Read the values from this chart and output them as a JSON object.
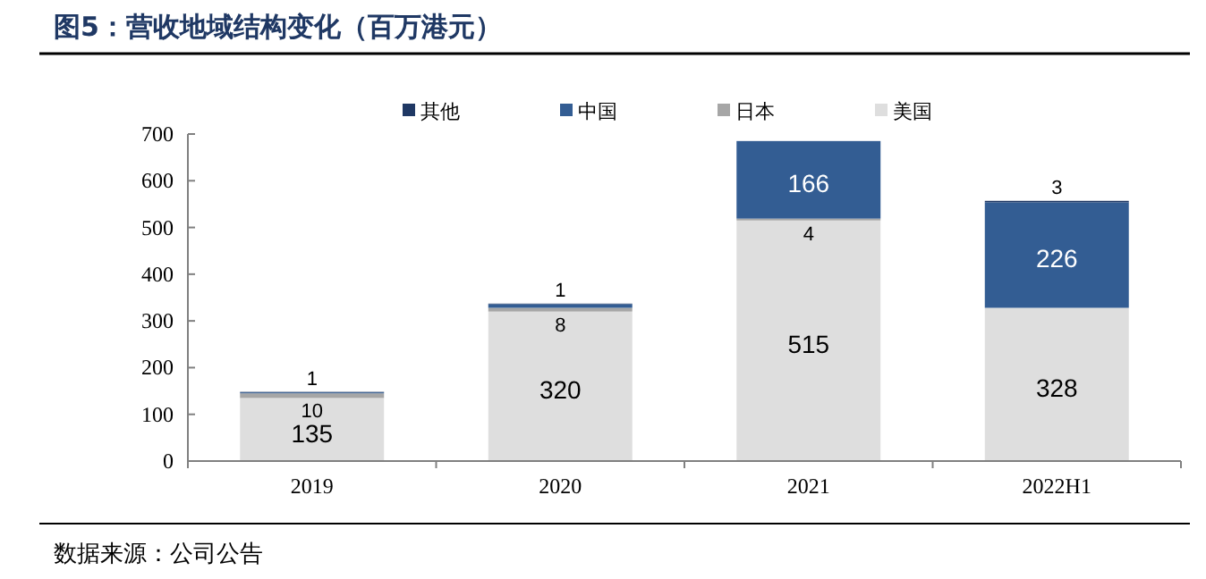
{
  "chart_data": {
    "type": "bar",
    "stacked": true,
    "title": "图5：营收地域结构变化（百万港元）",
    "annotations": [
      "数据来源：公司公告"
    ],
    "categories": [
      "2019",
      "2020",
      "2021",
      "2022H1"
    ],
    "series": [
      {
        "name": "美国",
        "color": "#dedede",
        "values": [
          135,
          320,
          515,
          328
        ],
        "value_labels": [
          "135",
          "320",
          "515",
          "328"
        ]
      },
      {
        "name": "日本",
        "color": "#a6a6a6",
        "values": [
          10,
          8,
          4,
          null
        ],
        "value_labels": [
          "10",
          "8",
          "4",
          null
        ]
      },
      {
        "name": "中国",
        "color": "#335d93",
        "values": [
          2,
          8,
          166,
          226
        ],
        "value_labels": [
          null,
          null,
          "166",
          "226"
        ]
      },
      {
        "name": "其他",
        "color": "#1f3864",
        "values": [
          1,
          1,
          null,
          3
        ],
        "value_labels": [
          "1",
          "1",
          null,
          "3"
        ]
      }
    ],
    "ylim": [
      0,
      700
    ],
    "yticks": [
      0,
      100,
      200,
      300,
      400,
      500,
      600,
      700
    ],
    "legend": "top",
    "grid": false
  }
}
